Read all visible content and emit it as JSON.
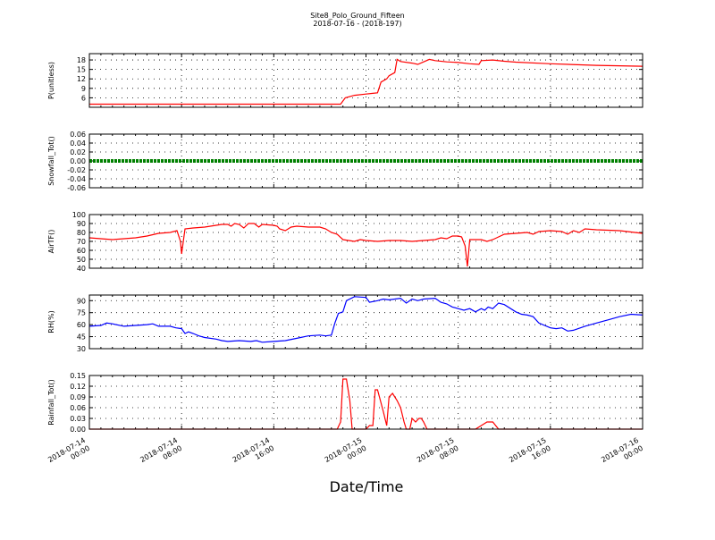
{
  "chart_data": {
    "type": "line",
    "title": "Site8_Polo_Ground_Fifteen",
    "subtitle": "2018-07-16 - (2018-197)",
    "xlabel": "Date/Time",
    "x_ticks": [
      {
        "t": 0,
        "line1": "2018-07-14",
        "line2": "00:00"
      },
      {
        "t": 8,
        "line1": "2018-07-14",
        "line2": "08:00"
      },
      {
        "t": 16,
        "line1": "2018-07-14",
        "line2": "16:00"
      },
      {
        "t": 24,
        "line1": "2018-07-15",
        "line2": "00:00"
      },
      {
        "t": 32,
        "line1": "2018-07-15",
        "line2": "08:00"
      },
      {
        "t": 40,
        "line1": "2018-07-15",
        "line2": "16:00"
      },
      {
        "t": 48,
        "line1": "2018-07-16",
        "line2": "00:00"
      }
    ],
    "panels": [
      {
        "ylabel": "P(unitless)",
        "ylim": [
          3,
          20
        ],
        "yticks": [
          6,
          9,
          12,
          15,
          18
        ],
        "color": "#ff0000",
        "points": [
          [
            0,
            4
          ],
          [
            10,
            4
          ],
          [
            20,
            4
          ],
          [
            21.5,
            4
          ],
          [
            21.8,
            4
          ],
          [
            22.2,
            6
          ],
          [
            23,
            6.8
          ],
          [
            24,
            7.2
          ],
          [
            24.5,
            7.4
          ],
          [
            25,
            7.6
          ],
          [
            25.3,
            11
          ],
          [
            25.8,
            12
          ],
          [
            26,
            13
          ],
          [
            26.5,
            14
          ],
          [
            26.7,
            18.2
          ],
          [
            27,
            17.5
          ],
          [
            28,
            17
          ],
          [
            28.5,
            16.6
          ],
          [
            29,
            17.4
          ],
          [
            29.5,
            18.2
          ],
          [
            30,
            17.8
          ],
          [
            31,
            17.4
          ],
          [
            32,
            17.2
          ],
          [
            33,
            16.8
          ],
          [
            33.8,
            16.6
          ],
          [
            34,
            17.8
          ],
          [
            35,
            18
          ],
          [
            36,
            17.6
          ],
          [
            37,
            17.3
          ],
          [
            40,
            16.8
          ],
          [
            44,
            16.3
          ],
          [
            48,
            16
          ]
        ]
      },
      {
        "ylabel": "Snowfall_Tot()",
        "ylim": [
          -0.06,
          0.06
        ],
        "yticks": [
          -0.06,
          -0.04,
          -0.02,
          0.0,
          0.02,
          0.04,
          0.06
        ],
        "color": "#008000",
        "points": [
          [
            0,
            0
          ],
          [
            48,
            0
          ]
        ]
      },
      {
        "ylabel": "AirTF()",
        "ylim": [
          40,
          100
        ],
        "yticks": [
          40,
          50,
          60,
          70,
          80,
          90,
          100
        ],
        "color": "#ff0000",
        "points": [
          [
            0,
            74
          ],
          [
            1,
            73
          ],
          [
            2,
            72
          ],
          [
            3,
            73
          ],
          [
            4,
            74
          ],
          [
            5,
            76
          ],
          [
            6,
            79
          ],
          [
            7,
            80
          ],
          [
            7.6,
            82
          ],
          [
            7.9,
            70
          ],
          [
            8,
            56
          ],
          [
            8.3,
            84
          ],
          [
            9,
            85
          ],
          [
            10,
            86
          ],
          [
            10.5,
            87
          ],
          [
            11,
            88
          ],
          [
            11.5,
            89
          ],
          [
            12,
            89
          ],
          [
            12.3,
            87
          ],
          [
            12.6,
            90
          ],
          [
            13,
            89
          ],
          [
            13.4,
            85
          ],
          [
            13.8,
            90
          ],
          [
            14.3,
            90
          ],
          [
            14.7,
            86
          ],
          [
            15,
            89
          ],
          [
            16,
            88
          ],
          [
            16.3,
            87
          ],
          [
            16.5,
            84
          ],
          [
            17,
            82
          ],
          [
            17.5,
            86
          ],
          [
            18,
            87
          ],
          [
            19,
            86
          ],
          [
            20,
            86
          ],
          [
            20.5,
            84
          ],
          [
            21,
            80
          ],
          [
            21.5,
            78
          ],
          [
            22,
            72
          ],
          [
            23,
            70
          ],
          [
            23.5,
            72
          ],
          [
            24,
            71
          ],
          [
            25,
            70
          ],
          [
            26,
            71
          ],
          [
            27,
            71
          ],
          [
            28,
            70
          ],
          [
            29,
            71
          ],
          [
            30,
            72
          ],
          [
            30.5,
            74
          ],
          [
            31,
            73
          ],
          [
            31.5,
            76
          ],
          [
            32,
            76
          ],
          [
            32.3,
            75
          ],
          [
            32.6,
            65
          ],
          [
            32.8,
            42
          ],
          [
            33,
            72
          ],
          [
            34,
            72
          ],
          [
            34.5,
            70
          ],
          [
            35,
            72
          ],
          [
            35.5,
            75
          ],
          [
            36,
            78
          ],
          [
            37,
            79
          ],
          [
            38,
            80
          ],
          [
            38.5,
            78
          ],
          [
            39,
            81
          ],
          [
            40,
            82
          ],
          [
            41,
            81
          ],
          [
            41.5,
            78
          ],
          [
            42,
            82
          ],
          [
            42.5,
            80
          ],
          [
            43,
            84
          ],
          [
            44,
            83
          ],
          [
            46,
            82
          ],
          [
            48,
            79
          ]
        ]
      },
      {
        "ylabel": "RH(%)",
        "ylim": [
          30,
          97
        ],
        "yticks": [
          30,
          45,
          60,
          75,
          90
        ],
        "color": "#0000ff",
        "points": [
          [
            0,
            58
          ],
          [
            1,
            59
          ],
          [
            1.5,
            62
          ],
          [
            2,
            61
          ],
          [
            3,
            58
          ],
          [
            4,
            59
          ],
          [
            5,
            60
          ],
          [
            5.5,
            61
          ],
          [
            6,
            58
          ],
          [
            7,
            58
          ],
          [
            7.5,
            56
          ],
          [
            8,
            55
          ],
          [
            8.3,
            49
          ],
          [
            8.6,
            51
          ],
          [
            9,
            49
          ],
          [
            9.5,
            46
          ],
          [
            10,
            44
          ],
          [
            11,
            42
          ],
          [
            11.5,
            40
          ],
          [
            12,
            39
          ],
          [
            13,
            40
          ],
          [
            14,
            39
          ],
          [
            14.5,
            40
          ],
          [
            15,
            38
          ],
          [
            16,
            39
          ],
          [
            17,
            40
          ],
          [
            18,
            43
          ],
          [
            19,
            46
          ],
          [
            20,
            47
          ],
          [
            20.5,
            46
          ],
          [
            21,
            47
          ],
          [
            21.3,
            62
          ],
          [
            21.6,
            74
          ],
          [
            22,
            76
          ],
          [
            22.3,
            90
          ],
          [
            23,
            95
          ],
          [
            24,
            94
          ],
          [
            24.3,
            88
          ],
          [
            25,
            90
          ],
          [
            25.5,
            92
          ],
          [
            26,
            91
          ],
          [
            27,
            93
          ],
          [
            27.5,
            87
          ],
          [
            28,
            92
          ],
          [
            28.5,
            90
          ],
          [
            29,
            92
          ],
          [
            30,
            93
          ],
          [
            30.5,
            88
          ],
          [
            31,
            86
          ],
          [
            31.5,
            82
          ],
          [
            32,
            80
          ],
          [
            32.5,
            78
          ],
          [
            33,
            80
          ],
          [
            33.5,
            76
          ],
          [
            34,
            80
          ],
          [
            34.3,
            78
          ],
          [
            34.6,
            82
          ],
          [
            35,
            80
          ],
          [
            35.5,
            87
          ],
          [
            36,
            85
          ],
          [
            37,
            76
          ],
          [
            37.5,
            73
          ],
          [
            38,
            72
          ],
          [
            38.5,
            70
          ],
          [
            39,
            62
          ],
          [
            40,
            56
          ],
          [
            40.5,
            55
          ],
          [
            41,
            56
          ],
          [
            41.5,
            52
          ],
          [
            42,
            53
          ],
          [
            43,
            58
          ],
          [
            44,
            62
          ],
          [
            45,
            66
          ],
          [
            46,
            70
          ],
          [
            47,
            73
          ],
          [
            48,
            72
          ]
        ]
      },
      {
        "ylabel": "Rainfall_Tot()",
        "ylim": [
          0,
          0.15
        ],
        "yticks": [
          0.0,
          0.03,
          0.06,
          0.09,
          0.12,
          0.15
        ],
        "color": "#ff0000",
        "points": [
          [
            0,
            0
          ],
          [
            21.5,
            0
          ],
          [
            21.8,
            0.02
          ],
          [
            22,
            0.14
          ],
          [
            22.3,
            0.14
          ],
          [
            22.6,
            0.08
          ],
          [
            22.8,
            0
          ],
          [
            24,
            0
          ],
          [
            24.3,
            0.01
          ],
          [
            24.6,
            0.01
          ],
          [
            24.8,
            0.11
          ],
          [
            25,
            0.11
          ],
          [
            25.5,
            0.05
          ],
          [
            25.8,
            0.01
          ],
          [
            26,
            0.09
          ],
          [
            26.3,
            0.1
          ],
          [
            26.7,
            0.08
          ],
          [
            27,
            0.06
          ],
          [
            27.3,
            0.02
          ],
          [
            27.5,
            0
          ],
          [
            27.8,
            0
          ],
          [
            28,
            0.03
          ],
          [
            28.3,
            0.02
          ],
          [
            28.6,
            0.03
          ],
          [
            28.8,
            0.03
          ],
          [
            29,
            0.02
          ],
          [
            29.3,
            0
          ],
          [
            33.5,
            0
          ],
          [
            34,
            0.01
          ],
          [
            34.5,
            0.02
          ],
          [
            35,
            0.02
          ],
          [
            35.5,
            0
          ],
          [
            48,
            0
          ]
        ]
      }
    ]
  }
}
